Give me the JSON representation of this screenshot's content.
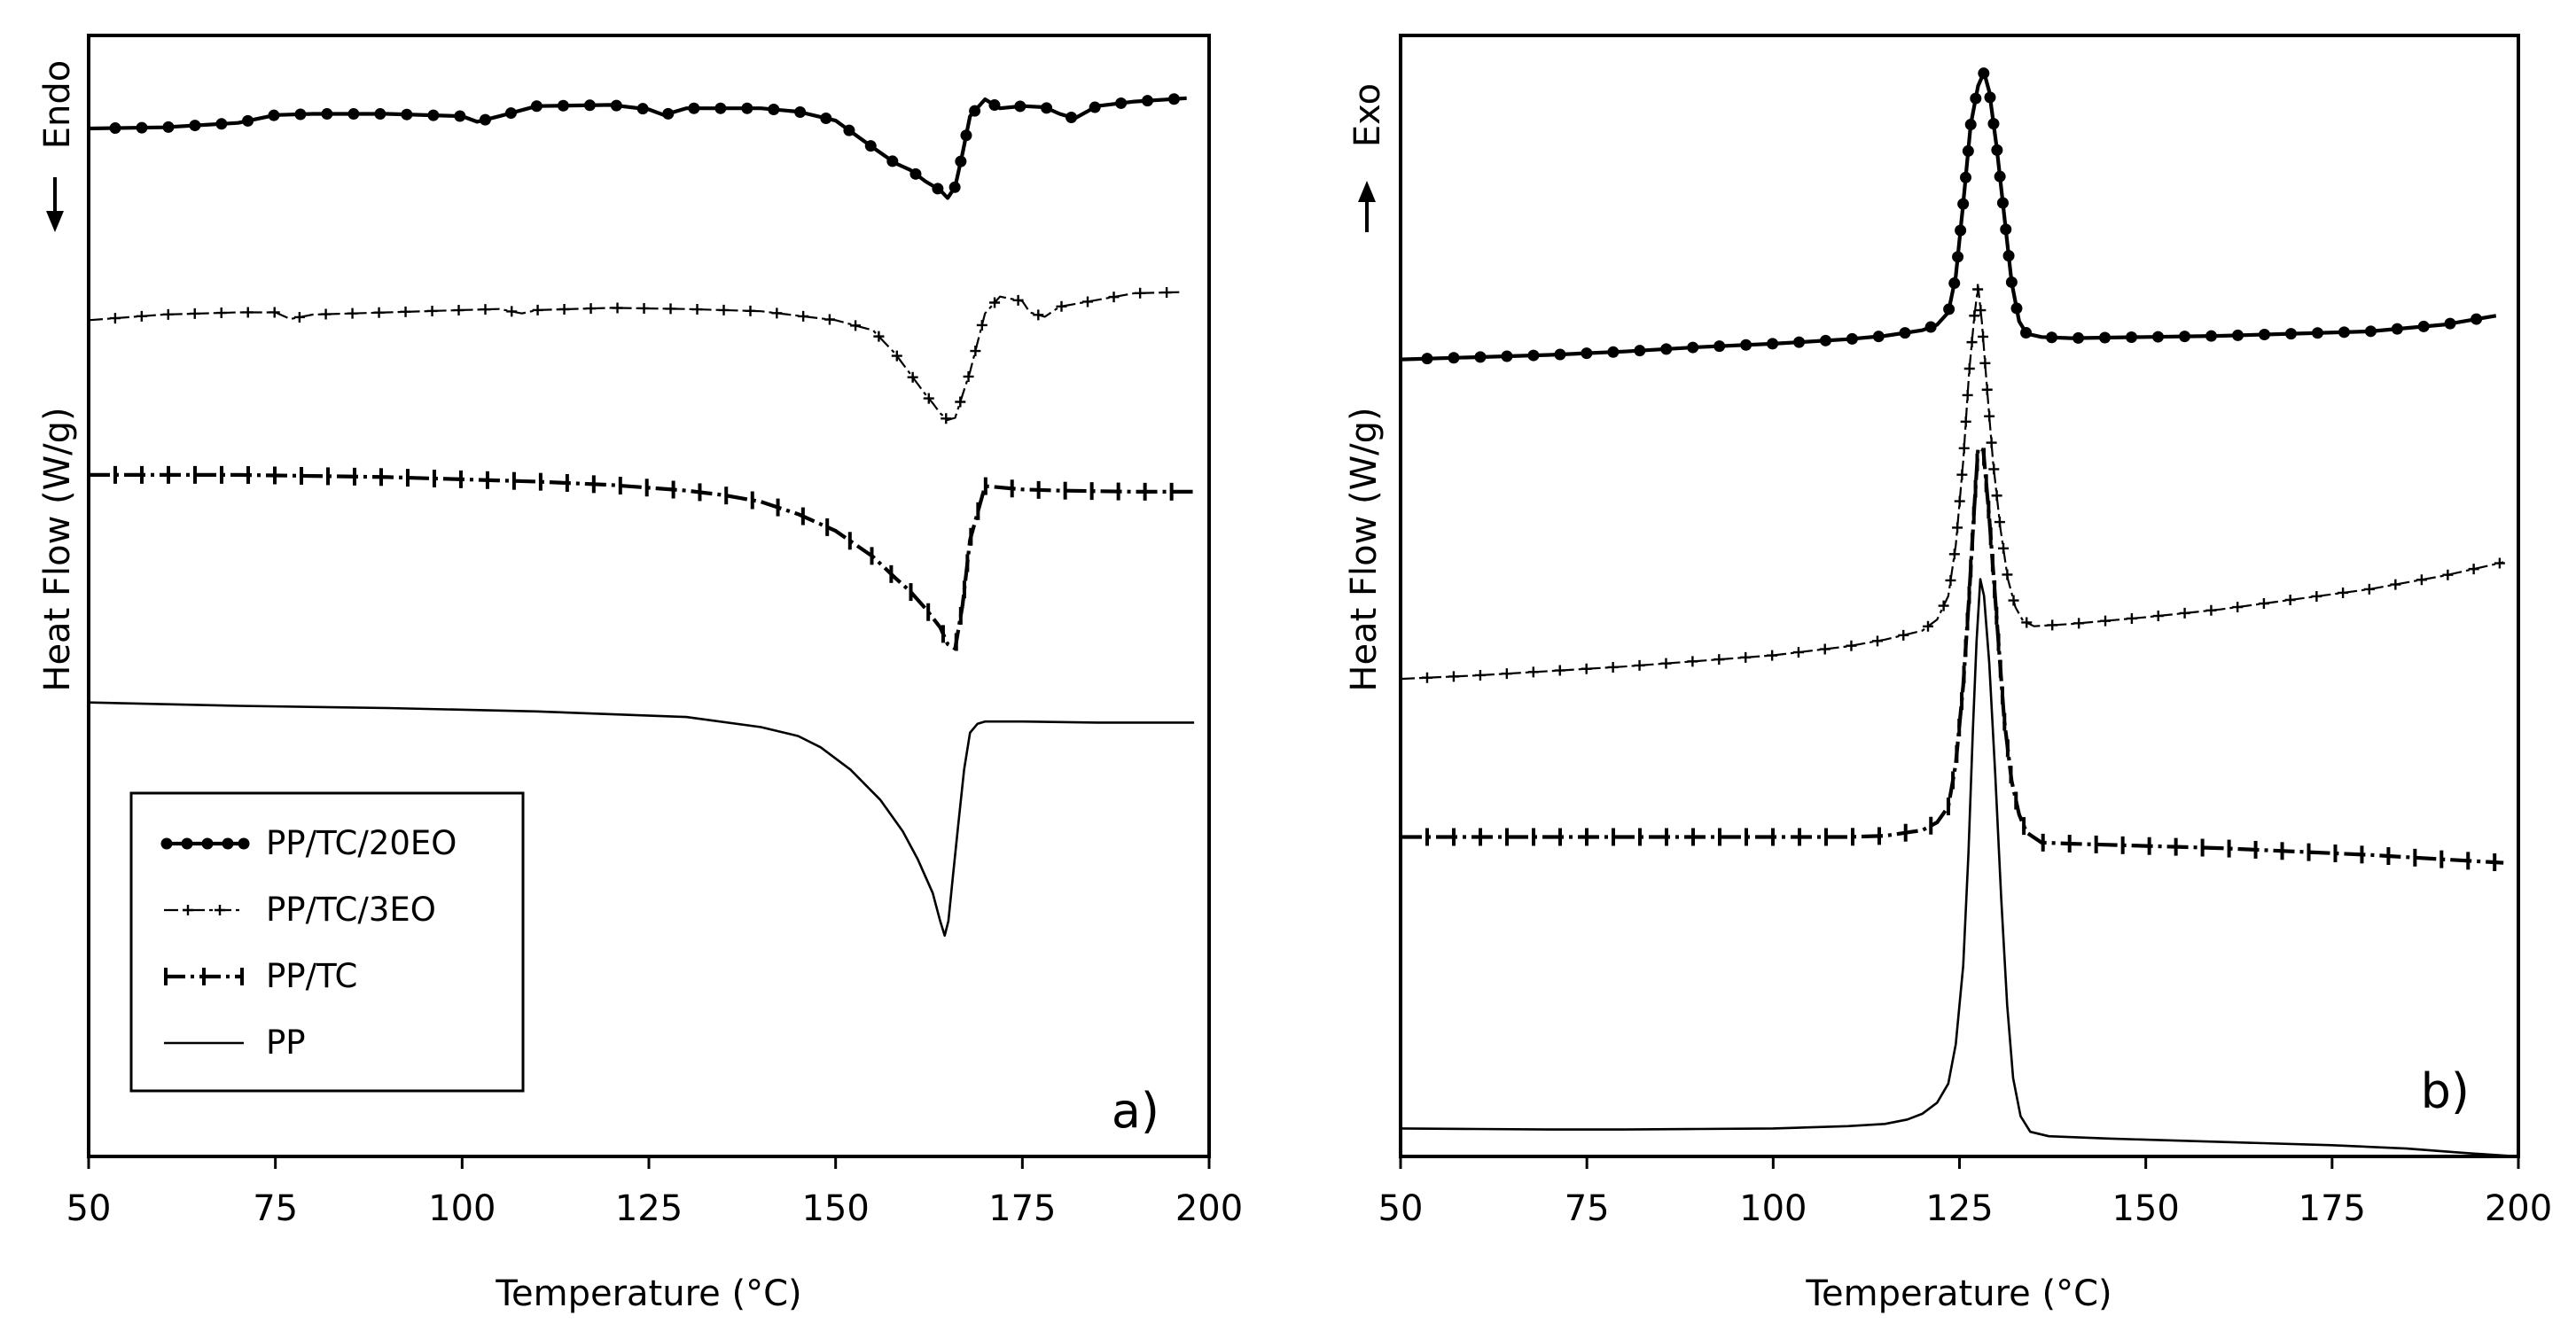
{
  "chart_data": [
    {
      "type": "line",
      "panel": "a)",
      "xlabel": "Temperature (°C)",
      "ylabel": "Heat Flow (W/g)",
      "direction_label": "Endo",
      "direction_arrow": "down",
      "xlim": [
        50,
        200
      ],
      "xticks": [
        "50",
        "75",
        "100",
        "125",
        "150",
        "175",
        "200"
      ],
      "ylim": [
        0,
        100
      ],
      "y_tick_labels": "none",
      "legend": {
        "placement": "bottom-left",
        "entries": [
          "PP/TC/20EO",
          "PP/TC/3EO",
          "PP/TC",
          "PP"
        ]
      },
      "series": [
        {
          "name": "PP/TC/20EO",
          "marker": "dot",
          "x": [
            50,
            60,
            70,
            75,
            80,
            90,
            100,
            102,
            105,
            110,
            120,
            125,
            127,
            130,
            140,
            145,
            150,
            155,
            158,
            160,
            162,
            164,
            165,
            166,
            167,
            168,
            170,
            172,
            175,
            178,
            180,
            182,
            185,
            190,
            197
          ],
          "y": [
            91.7,
            91.8,
            92.2,
            92.9,
            93.0,
            93.0,
            92.8,
            92.3,
            92.8,
            93.7,
            93.8,
            93.4,
            92.9,
            93.5,
            93.5,
            93.2,
            92.4,
            90.0,
            88.6,
            88.0,
            87.0,
            86.2,
            85.5,
            86.5,
            89.5,
            92.8,
            94.3,
            93.5,
            93.7,
            93.6,
            93.0,
            92.6,
            93.7,
            94.1,
            94.4
          ]
        },
        {
          "name": "PP/TC/3EO",
          "marker": "plus",
          "x": [
            50,
            60,
            70,
            75,
            77,
            80,
            90,
            100,
            105,
            108,
            110,
            120,
            130,
            140,
            145,
            150,
            155,
            158,
            160,
            162,
            163,
            164,
            165,
            166,
            168,
            170,
            172,
            175,
            176,
            178,
            180,
            190,
            196
          ],
          "y": [
            74.6,
            75.1,
            75.3,
            75.3,
            74.7,
            75.1,
            75.3,
            75.5,
            75.6,
            75.2,
            75.5,
            75.7,
            75.6,
            75.4,
            75.0,
            74.6,
            73.7,
            71.6,
            69.8,
            68.0,
            67.2,
            66.3,
            65.7,
            65.9,
            70.0,
            75.2,
            76.7,
            76.3,
            75.3,
            74.9,
            75.8,
            77.0,
            77.1
          ]
        },
        {
          "name": "PP/TC",
          "marker": "bar",
          "x": [
            50,
            60,
            70,
            80,
            90,
            100,
            110,
            120,
            130,
            135,
            140,
            145,
            150,
            155,
            158,
            160,
            162,
            164,
            165,
            166,
            167,
            168,
            170,
            175,
            180,
            190,
            198
          ],
          "y": [
            60.8,
            60.8,
            60.8,
            60.7,
            60.6,
            60.4,
            60.2,
            59.9,
            59.4,
            59.0,
            58.4,
            57.3,
            55.8,
            53.5,
            51.6,
            50.4,
            48.9,
            47.2,
            45.7,
            45.3,
            49.2,
            55.0,
            59.8,
            59.5,
            59.4,
            59.3,
            59.3
          ]
        },
        {
          "name": "PP",
          "marker": "none",
          "x": [
            50,
            70,
            90,
            110,
            130,
            140,
            145,
            148,
            152,
            156,
            159,
            161,
            163,
            164,
            164.6,
            165.1,
            165.7,
            166.4,
            167.2,
            168,
            169,
            170,
            175,
            185,
            198
          ],
          "y": [
            40.5,
            40.2,
            40.0,
            39.7,
            39.2,
            38.3,
            37.5,
            36.5,
            34.5,
            31.8,
            29.0,
            26.5,
            23.5,
            21.0,
            19.7,
            21.0,
            25.0,
            29.5,
            34.5,
            37.8,
            38.6,
            38.8,
            38.8,
            38.7,
            38.7
          ]
        }
      ]
    },
    {
      "type": "line",
      "panel": "b)",
      "xlabel": "Temperature (°C)",
      "ylabel": "Heat Flow (W/g)",
      "direction_label": "Exo",
      "direction_arrow": "up",
      "xlim": [
        50,
        200
      ],
      "xticks": [
        "50",
        "75",
        "100",
        "125",
        "150",
        "175",
        "200"
      ],
      "ylim": [
        0,
        100
      ],
      "y_tick_labels": "none",
      "series": [
        {
          "name": "PP/TC/20EO",
          "marker": "dot",
          "x": [
            50,
            60,
            70,
            80,
            90,
            100,
            110,
            115,
            120,
            122,
            123.5,
            124.5,
            125.5,
            126.5,
            127.5,
            128.3,
            129,
            130,
            131,
            132,
            133,
            134,
            136,
            140,
            150,
            160,
            170,
            180,
            190,
            197
          ],
          "y": [
            71.1,
            71.3,
            71.5,
            71.8,
            72.2,
            72.5,
            72.9,
            73.2,
            73.7,
            74.2,
            75.3,
            78.5,
            85.0,
            92.0,
            95.5,
            96.7,
            95.0,
            90.0,
            84.0,
            78.0,
            74.5,
            73.4,
            73.1,
            73.0,
            73.1,
            73.2,
            73.4,
            73.6,
            74.2,
            75.0
          ]
        },
        {
          "name": "PP/TC/3EO",
          "marker": "plus",
          "x": [
            50,
            60,
            70,
            80,
            90,
            100,
            110,
            115,
            120,
            122,
            123.5,
            124.5,
            125.5,
            126.3,
            127,
            127.5,
            128,
            128.7,
            129.5,
            130.5,
            131.5,
            132.5,
            133.5,
            135,
            140,
            150,
            160,
            170,
            180,
            190,
            198
          ],
          "y": [
            42.6,
            42.9,
            43.3,
            43.7,
            44.2,
            44.7,
            45.5,
            46.1,
            46.9,
            47.9,
            50.0,
            54.5,
            62.0,
            70.0,
            75.0,
            77.6,
            74.5,
            68.5,
            62.0,
            56.0,
            51.5,
            49.0,
            47.8,
            47.3,
            47.5,
            48.1,
            48.8,
            49.7,
            50.6,
            51.8,
            53.0
          ]
        },
        {
          "name": "PP/TC",
          "marker": "bar",
          "x": [
            50,
            60,
            70,
            80,
            90,
            100,
            110,
            115,
            120,
            122,
            123.5,
            124.5,
            125.5,
            126.3,
            127,
            127.5,
            128.2,
            129,
            130,
            131,
            132,
            133,
            134,
            136,
            140,
            150,
            160,
            170,
            180,
            190,
            198
          ],
          "y": [
            28.5,
            28.5,
            28.5,
            28.5,
            28.5,
            28.5,
            28.5,
            28.6,
            29.1,
            29.8,
            31.2,
            35.0,
            42.0,
            50.0,
            58.0,
            63.2,
            63.0,
            57.0,
            48.0,
            39.0,
            33.5,
            30.5,
            28.9,
            28.0,
            27.9,
            27.7,
            27.5,
            27.2,
            26.9,
            26.5,
            26.2
          ]
        },
        {
          "name": "PP",
          "marker": "none",
          "x": [
            50,
            60,
            70,
            80,
            90,
            100,
            110,
            115,
            118,
            120,
            122,
            123.5,
            124.5,
            125.5,
            126.2,
            126.8,
            127.3,
            127.8,
            128.3,
            129,
            129.8,
            130.6,
            131.4,
            132.2,
            133.2,
            134.5,
            137,
            145,
            160,
            175,
            185,
            193,
            200
          ],
          "y": [
            2.5,
            2.45,
            2.4,
            2.4,
            2.45,
            2.5,
            2.7,
            2.9,
            3.3,
            3.8,
            4.8,
            6.5,
            10.0,
            17.0,
            27.0,
            38.0,
            46.0,
            51.5,
            50.0,
            44.0,
            34.0,
            23.0,
            13.5,
            7.0,
            3.6,
            2.2,
            1.8,
            1.6,
            1.3,
            1.0,
            0.7,
            0.3,
            0.0
          ]
        }
      ]
    }
  ]
}
